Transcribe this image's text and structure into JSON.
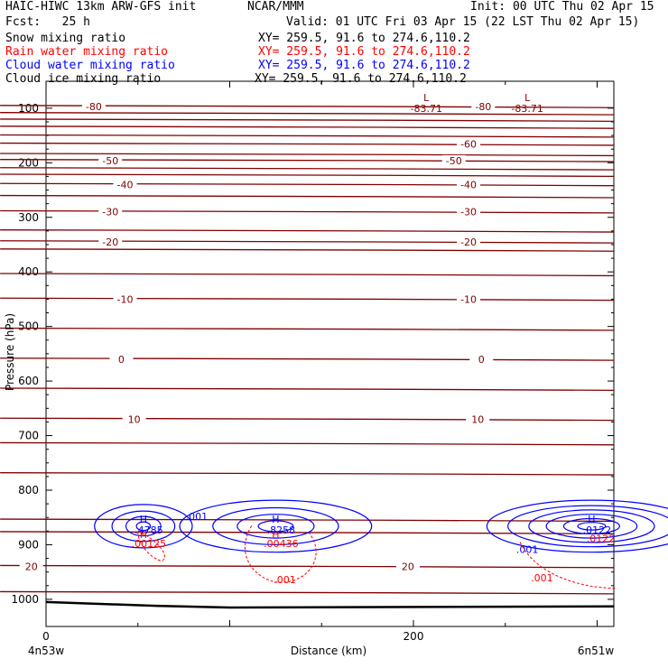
{
  "header": {
    "model": "HAIC-HIWC 13km ARW-GFS init",
    "org": "NCAR/MMM",
    "init": "Init: 00 UTC Thu 02 Apr 15",
    "fcst": "Fcst:   25 h",
    "valid": "Valid: 01 UTC Fri 03 Apr 15 (22 LST Thu 02 Apr 15)",
    "fields": [
      {
        "name": "Snow mixing ratio",
        "xy": "XY= 259.5, 91.6 to 274.6,110.2",
        "color": "#000000"
      },
      {
        "name": "Rain water mixing ratio",
        "xy": "XY= 259.5, 91.6 to 274.6,110.2",
        "color": "#ff0000"
      },
      {
        "name": "Cloud water mixing ratio",
        "xy": "XY= 259.5, 91.6 to 274.6,110.2",
        "color": "#0000ff"
      },
      {
        "name": "Cloud ice mixing ratio",
        "xy": "XY= 259.5, 91.6 to 274.6,110.2",
        "color": "#000000"
      }
    ]
  },
  "chart_data": {
    "type": "cross-section",
    "xlabel": "Distance (km)",
    "ylabel": "Pressure (hPa)",
    "xlim": [
      0,
      310
    ],
    "ylim": [
      1050,
      50
    ],
    "x_ticks": [
      0,
      200
    ],
    "y_ticks": [
      100,
      200,
      300,
      400,
      500,
      600,
      700,
      800,
      900,
      1000
    ],
    "x_endpoints": [
      "4n53w",
      "6n51w"
    ],
    "temperature_color": "#800000",
    "isotherms": [
      {
        "p": 97,
        "label": "-80",
        "at": [
          26,
          238
        ]
      },
      {
        "p": 110
      },
      {
        "p": 122
      },
      {
        "p": 135
      },
      {
        "p": 151
      },
      {
        "p": 166,
        "label": "-60",
        "at": [
          230
        ]
      },
      {
        "p": 185
      },
      {
        "p": 196,
        "label": "-50",
        "at": [
          35,
          222
        ]
      },
      {
        "p": 211
      },
      {
        "p": 223
      },
      {
        "p": 240,
        "label": "-40",
        "at": [
          43,
          230
        ]
      },
      {
        "p": 262
      },
      {
        "p": 290,
        "label": "-30",
        "at": [
          35,
          230
        ]
      },
      {
        "p": 325
      },
      {
        "p": 345,
        "label": "-20",
        "at": [
          35,
          230
        ]
      },
      {
        "p": 360
      },
      {
        "p": 405
      },
      {
        "p": 450,
        "label": "-10",
        "at": [
          43,
          230
        ]
      },
      {
        "p": 505
      },
      {
        "p": 560,
        "label": "0",
        "at": [
          41,
          237
        ]
      },
      {
        "p": 615
      },
      {
        "p": 670,
        "label": "10",
        "at": [
          48,
          235
        ]
      },
      {
        "p": 715
      },
      {
        "p": 770
      },
      {
        "p": 855
      },
      {
        "p": 878
      },
      {
        "p": 940,
        "label": "20",
        "at": [
          -8,
          197
        ]
      },
      {
        "p": 988
      }
    ],
    "lows": [
      {
        "x": 207,
        "p": 80,
        "label": "-83.71"
      },
      {
        "x": 262,
        "p": 80,
        "label": "-83.71"
      }
    ],
    "cloud_water": {
      "color": "#0000ff",
      "contour_label": ".001",
      "maxima": [
        {
          "x": 53,
          "p": 866,
          "label": ".4785"
        },
        {
          "x": 125,
          "p": 866,
          "label": ".8258"
        },
        {
          "x": 297,
          "p": 866,
          "label": ".0122"
        }
      ]
    },
    "rain_water": {
      "color": "#ff0000",
      "contour_label": ".001",
      "maxima": [
        {
          "x": 53,
          "p": 888,
          "label": ".00125"
        },
        {
          "x": 125,
          "p": 888,
          "label": ".00436"
        }
      ]
    },
    "ground": {
      "p": [
        1005,
        1015
      ]
    }
  }
}
